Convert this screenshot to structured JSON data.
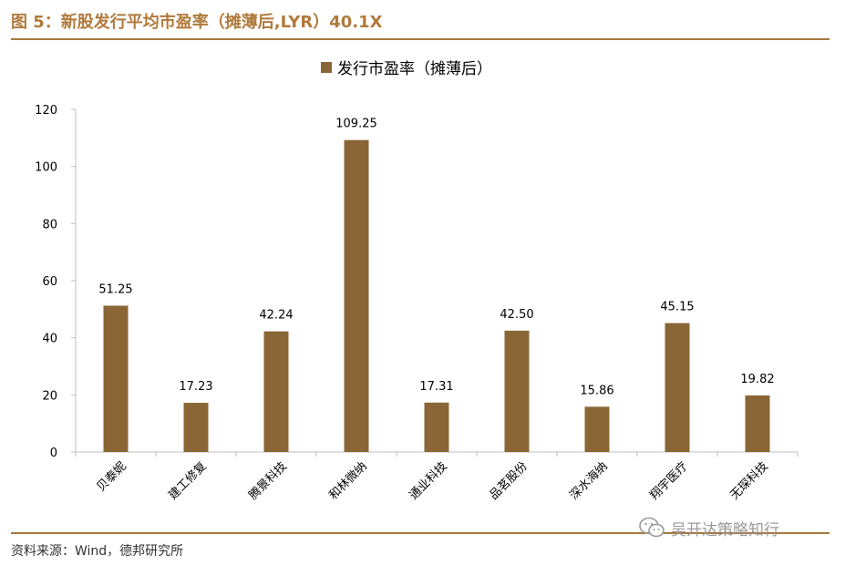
{
  "figure": {
    "title": "图 5：新股发行平均市盈率（摊薄后,LYR）40.1X",
    "source": "资料来源：Wind，德邦研究所",
    "watermark": "吴开达策略知行",
    "watermark_icon": "wechat-icon"
  },
  "colors": {
    "bar": "#8a6636",
    "accent": "#a8773f",
    "axis": "#bfbfbf"
  },
  "chart_data": {
    "type": "bar",
    "title": "",
    "xlabel": "",
    "ylabel": "",
    "categories": [
      "贝泰妮",
      "建工修复",
      "腾景科技",
      "和林微纳",
      "通业科技",
      "品茗股份",
      "深水海纳",
      "翔宇医疗",
      "无琛科技"
    ],
    "series": [
      {
        "name": "发行市盈率（摊薄后）",
        "values": [
          51.25,
          17.23,
          42.24,
          109.25,
          17.31,
          42.5,
          15.86,
          45.15,
          19.82
        ],
        "labels": [
          "51.25",
          "17.23",
          "42.24",
          "109.25",
          "17.31",
          "42.50",
          "15.86",
          "45.15",
          "19.82"
        ]
      }
    ],
    "ylim": [
      0,
      120
    ],
    "yticks": [
      0,
      20,
      40,
      60,
      80,
      100,
      120
    ],
    "grid": false,
    "legend_position": "top-center"
  }
}
